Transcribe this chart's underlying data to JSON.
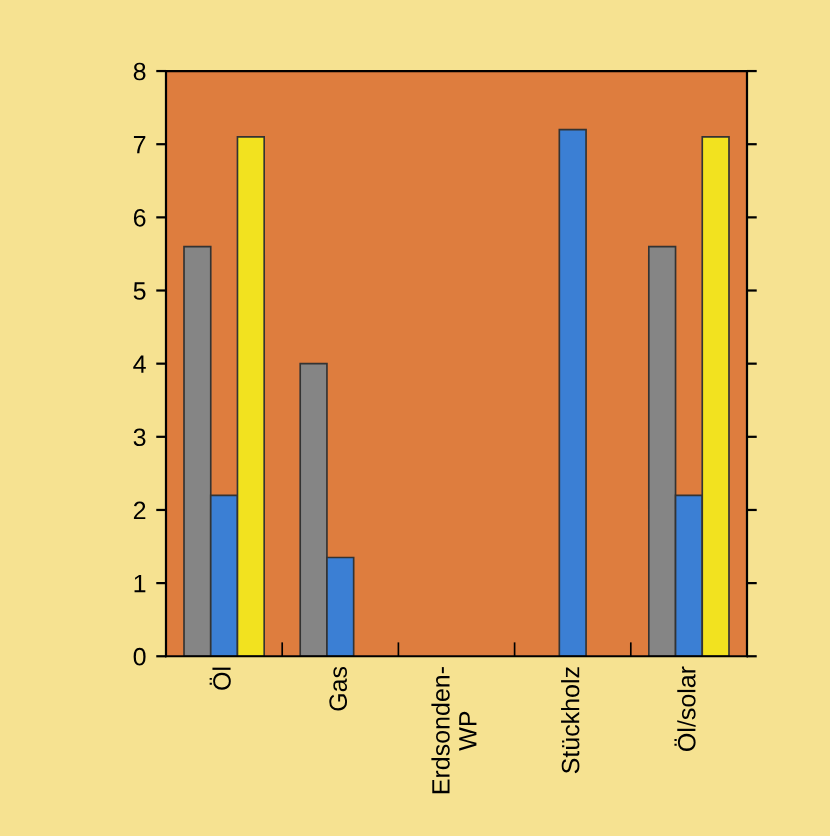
{
  "chart_data": {
    "type": "bar",
    "categories": [
      "Öl",
      "Gas",
      "Erdsonden-\nWP",
      "Stückholz",
      "Öl/solar"
    ],
    "series": [
      {
        "color": "#858585",
        "values": [
          5.6,
          4.0,
          null,
          null,
          5.6
        ]
      },
      {
        "color": "#3b7fd4",
        "values": [
          2.2,
          1.35,
          null,
          7.2,
          2.2
        ]
      },
      {
        "color": "#f2e21f",
        "values": [
          7.1,
          null,
          null,
          null,
          7.1
        ]
      }
    ],
    "ylim": [
      0,
      8
    ],
    "yticks": [
      0,
      1,
      2,
      3,
      4,
      5,
      6,
      7,
      8
    ],
    "grid": false,
    "legend": false
  }
}
